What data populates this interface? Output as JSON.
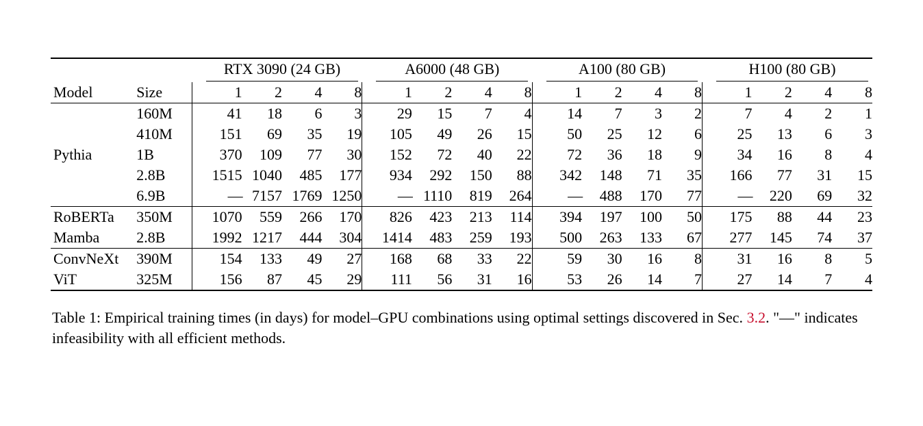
{
  "type": "table",
  "font_family": "Times New Roman",
  "font_size_pt": 11,
  "colors": {
    "text": "#000000",
    "background": "#ffffff",
    "rule": "#000000",
    "link": "#c8102e"
  },
  "gpus": [
    {
      "label": "RTX 3090 (24 GB)",
      "counts": [
        "1",
        "2",
        "4",
        "8"
      ]
    },
    {
      "label": "A6000 (48 GB)",
      "counts": [
        "1",
        "2",
        "4",
        "8"
      ]
    },
    {
      "label": "A100 (80 GB)",
      "counts": [
        "1",
        "2",
        "4",
        "8"
      ]
    },
    {
      "label": "H100 (80 GB)",
      "counts": [
        "1",
        "2",
        "4",
        "8"
      ]
    }
  ],
  "header": {
    "model": "Model",
    "size": "Size"
  },
  "dash": "—",
  "groups": [
    {
      "rows": [
        {
          "model": "",
          "size": "160M",
          "v": [
            "41",
            "18",
            "6",
            "3",
            "29",
            "15",
            "7",
            "4",
            "14",
            "7",
            "3",
            "2",
            "7",
            "4",
            "2",
            "1"
          ]
        },
        {
          "model": "",
          "size": "410M",
          "v": [
            "151",
            "69",
            "35",
            "19",
            "105",
            "49",
            "26",
            "15",
            "50",
            "25",
            "12",
            "6",
            "25",
            "13",
            "6",
            "3"
          ]
        },
        {
          "model": "Pythia",
          "size": "1B",
          "v": [
            "370",
            "109",
            "77",
            "30",
            "152",
            "72",
            "40",
            "22",
            "72",
            "36",
            "18",
            "9",
            "34",
            "16",
            "8",
            "4"
          ]
        },
        {
          "model": "",
          "size": "2.8B",
          "v": [
            "1515",
            "1040",
            "485",
            "177",
            "934",
            "292",
            "150",
            "88",
            "342",
            "148",
            "71",
            "35",
            "166",
            "77",
            "31",
            "15"
          ]
        },
        {
          "model": "",
          "size": "6.9B",
          "v": [
            "—",
            "7157",
            "1769",
            "1250",
            "—",
            "1110",
            "819",
            "264",
            "—",
            "488",
            "170",
            "77",
            "—",
            "220",
            "69",
            "32"
          ]
        }
      ]
    },
    {
      "rows": [
        {
          "model": "RoBERTa",
          "size": "350M",
          "v": [
            "1070",
            "559",
            "266",
            "170",
            "826",
            "423",
            "213",
            "114",
            "394",
            "197",
            "100",
            "50",
            "175",
            "88",
            "44",
            "23"
          ]
        },
        {
          "model": "Mamba",
          "size": "2.8B",
          "v": [
            "1992",
            "1217",
            "444",
            "304",
            "1414",
            "483",
            "259",
            "193",
            "500",
            "263",
            "133",
            "67",
            "277",
            "145",
            "74",
            "37"
          ]
        }
      ]
    },
    {
      "rows": [
        {
          "model": "ConvNeXt",
          "size": "390M",
          "v": [
            "154",
            "133",
            "49",
            "27",
            "168",
            "68",
            "33",
            "22",
            "59",
            "30",
            "16",
            "8",
            "31",
            "16",
            "8",
            "5"
          ]
        },
        {
          "model": "ViT",
          "size": "325M",
          "v": [
            "156",
            "87",
            "45",
            "29",
            "111",
            "56",
            "31",
            "16",
            "53",
            "26",
            "14",
            "7",
            "27",
            "14",
            "7",
            "4"
          ]
        }
      ]
    }
  ],
  "caption": {
    "prefix": "Table 1: Empirical training times (in days) for model–GPU combinations using optimal settings discovered in Sec. ",
    "ref": "3.2",
    "suffix": ". \"—\" indicates infeasibility with all efficient methods."
  }
}
